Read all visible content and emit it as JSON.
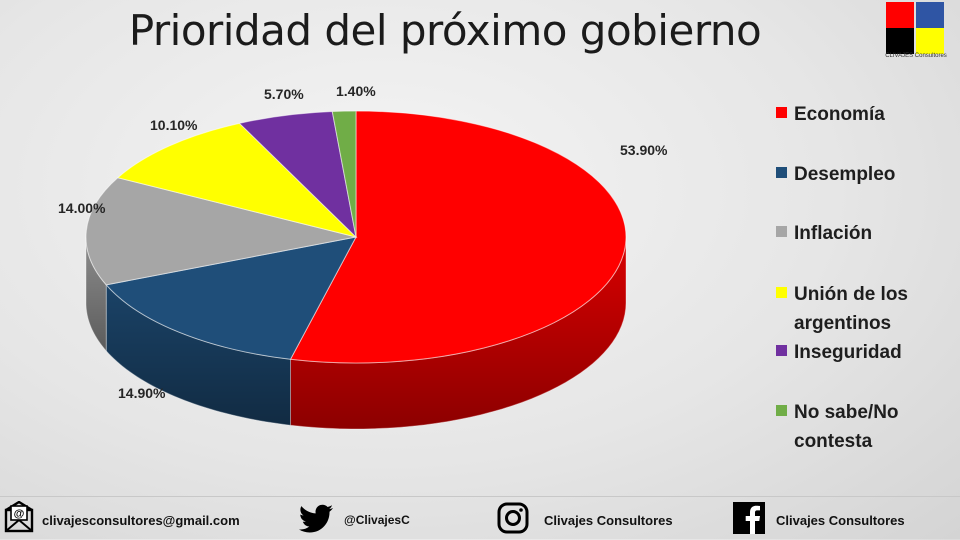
{
  "chart_data": {
    "type": "pie",
    "title": "Prioridad del próximo gobierno",
    "categories": [
      "Economía",
      "Desempleo",
      "Inflación",
      "Unión de los argentinos",
      "Inseguridad",
      "No sabe/No contesta"
    ],
    "values": [
      53.9,
      14.9,
      14.0,
      10.1,
      5.7,
      1.4
    ],
    "data_labels": [
      "53.90%",
      "14.90%",
      "14.00%",
      "10.10%",
      "5.70%",
      "1.40%"
    ],
    "colors": [
      "#ff0000",
      "#1f4e79",
      "#a6a6a6",
      "#ffff00",
      "#7030a0",
      "#70ad47"
    ],
    "legend_position": "right",
    "style": "3d"
  },
  "legend": {
    "items": [
      {
        "label_line1": "Economía",
        "label_line2": ""
      },
      {
        "label_line1": "Desempleo",
        "label_line2": ""
      },
      {
        "label_line1": "Inflación",
        "label_line2": ""
      },
      {
        "label_line1": "Unión de los",
        "label_line2": "argentinos"
      },
      {
        "label_line1": "Inseguridad",
        "label_line2": ""
      },
      {
        "label_line1": "No sabe/No",
        "label_line2": "contesta"
      }
    ]
  },
  "logo": {
    "text": "CLIVAJES Consultores",
    "colors": [
      "#ff0000",
      "#2f55a4",
      "#000000",
      "#ffff00"
    ]
  },
  "footer": {
    "email": "clivajesconsultores@gmail.com",
    "email_icon": "envelope-icon",
    "twitter": "@ClivajesC",
    "twitter_icon": "twitter-icon",
    "instagram": "Clivajes Consultores",
    "instagram_icon": "instagram-icon",
    "facebook": "Clivajes Consultores",
    "facebook_icon": "facebook-icon"
  }
}
